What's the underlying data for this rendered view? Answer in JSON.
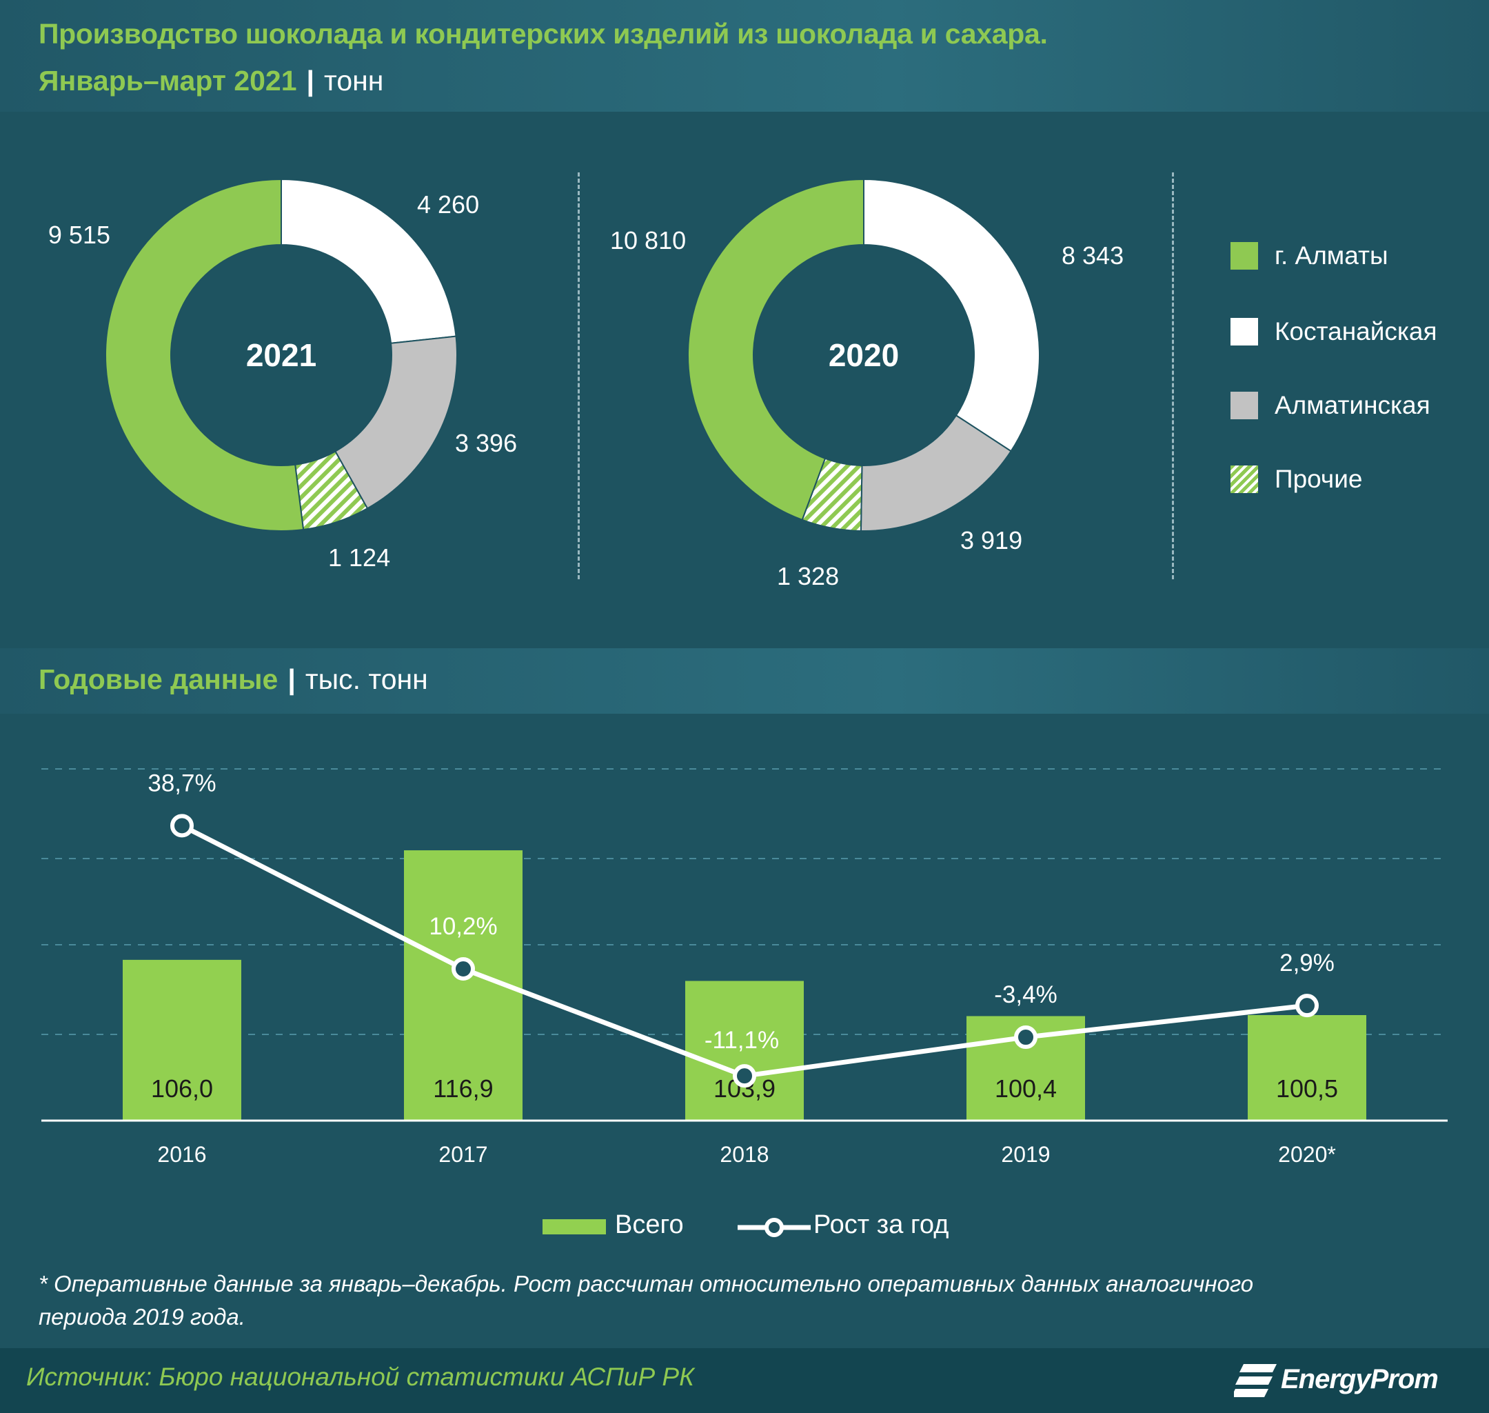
{
  "header": {
    "title_line1": "Производство шоколада и кондитерских изделий из шоколада и сахара.",
    "title_line2": "Январь–март 2021",
    "title_sep": "|",
    "unit": "тонн"
  },
  "chart_data": [
    {
      "type": "pie",
      "subtype": "donut",
      "center_label": "2021",
      "slices": [
        {
          "name": "г. Алматы",
          "value": 9515,
          "label": "9 515",
          "color": "#8fc952"
        },
        {
          "name": "Костанайская",
          "value": 4260,
          "label": "4 260",
          "color": "#ffffff"
        },
        {
          "name": "Алматинская",
          "value": 3396,
          "label": "3 396",
          "color": "#c2c2c2"
        },
        {
          "name": "Прочие",
          "value": 1124,
          "label": "1 124",
          "color": "#8fc952",
          "pattern": "hatch"
        }
      ]
    },
    {
      "type": "pie",
      "subtype": "donut",
      "center_label": "2020",
      "slices": [
        {
          "name": "г. Алматы",
          "value": 10810,
          "label": "10 810",
          "color": "#8fc952"
        },
        {
          "name": "Костанайская",
          "value": 8343,
          "label": "8 343",
          "color": "#ffffff"
        },
        {
          "name": "Алматинская",
          "value": 3919,
          "label": "3 919",
          "color": "#c2c2c2"
        },
        {
          "name": "Прочие",
          "value": 1328,
          "label": "1 328",
          "color": "#8fc952",
          "pattern": "hatch"
        }
      ]
    },
    {
      "type": "bar",
      "title": "Годовые данные",
      "unit": "тыс. тонн",
      "categories": [
        "2016",
        "2017",
        "2018",
        "2019",
        "2020*"
      ],
      "series": [
        {
          "name": "Всего",
          "type": "bar",
          "values": [
            106.0,
            116.9,
            103.9,
            100.4,
            100.5
          ],
          "labels": [
            "106,0",
            "116,9",
            "103,9",
            "100,4",
            "100,5"
          ],
          "color": "#92d050"
        },
        {
          "name": "Рост за год",
          "type": "line",
          "values": [
            38.7,
            10.2,
            -11.1,
            -3.4,
            2.9
          ],
          "labels": [
            "38,7%",
            "10,2%",
            "-11,1%",
            "-3,4%",
            "2,9%"
          ],
          "color": "#ffffff"
        }
      ],
      "bar_ylim": [
        90,
        125
      ],
      "line_ylim": [
        -20,
        50
      ],
      "grid": "dashed horizontal",
      "legend_position": "bottom-center"
    }
  ],
  "legend": {
    "items": [
      {
        "label": "г. Алматы",
        "color": "#8fc952"
      },
      {
        "label": "Костанайская",
        "color": "#ffffff"
      },
      {
        "label": "Алматинская",
        "color": "#c2c2c2"
      },
      {
        "label": "Прочие",
        "color": "#8fc952",
        "pattern": "hatch"
      }
    ]
  },
  "section2": {
    "title": "Годовые данные",
    "sep": "|",
    "unit": "тыс. тонн"
  },
  "bar_legend": {
    "bar_label": "Всего",
    "line_label": "Рост за год"
  },
  "footnote": {
    "line1": "* Оперативные данные за январь–декабрь. Рост рассчитан относительно оперативных данных аналогичного",
    "line2": "периода 2019 года."
  },
  "source": "Источник: Бюро национальной  статистики АСПиР РК",
  "logo": "EnergyProm"
}
